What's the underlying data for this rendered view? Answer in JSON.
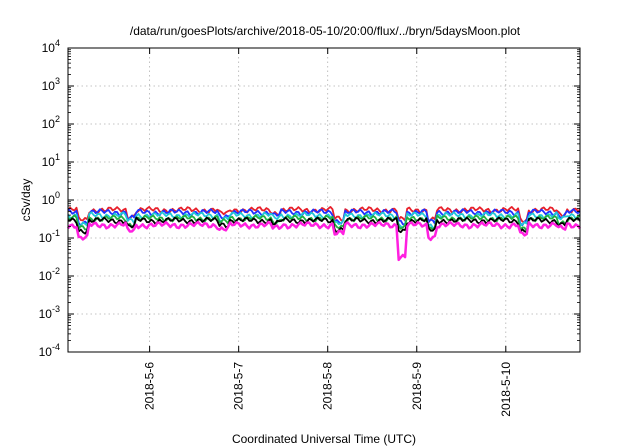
{
  "chart_data": {
    "type": "line",
    "title": "/data/run/goesPlots/archive/2018-05-10/20:00/flux/../bryn/5daysMoon.plot",
    "xlabel": "Coordinated Universal Time (UTC)",
    "ylabel": "cSv/day",
    "yscale": "log",
    "ylim": [
      0.0001,
      10000
    ],
    "y_ticks": [
      {
        "value": 0.0001,
        "base": "10",
        "exp": "-4"
      },
      {
        "value": 0.001,
        "base": "10",
        "exp": "-3"
      },
      {
        "value": 0.01,
        "base": "10",
        "exp": "-2"
      },
      {
        "value": 0.1,
        "base": "10",
        "exp": "-1"
      },
      {
        "value": 1,
        "base": "10",
        "exp": "0"
      },
      {
        "value": 10,
        "base": "10",
        "exp": "1"
      },
      {
        "value": 100,
        "base": "10",
        "exp": "2"
      },
      {
        "value": 1000,
        "base": "10",
        "exp": "3"
      },
      {
        "value": 10000,
        "base": "10",
        "exp": "4"
      }
    ],
    "xlim": [
      "2018-05-05T02:00",
      "2018-05-10T20:00"
    ],
    "x_ticks": [
      {
        "value": "2018-05-06T00:00",
        "label": "2018-5-6"
      },
      {
        "value": "2018-05-07T00:00",
        "label": "2018-5-7"
      },
      {
        "value": "2018-05-08T00:00",
        "label": "2018-5-8"
      },
      {
        "value": "2018-05-09T00:00",
        "label": "2018-5-9"
      },
      {
        "value": "2018-05-10T00:00",
        "label": "2018-5-10"
      }
    ],
    "grid": true,
    "dips": [
      {
        "x": "2018-05-05T06:00",
        "scale": 0.45
      },
      {
        "x": "2018-05-05T19:00",
        "scale": 0.7
      },
      {
        "x": "2018-05-06T20:00",
        "scale": 0.8
      },
      {
        "x": "2018-05-07T10:00",
        "scale": 0.85
      },
      {
        "x": "2018-05-08T03:00",
        "scale": 0.6
      },
      {
        "x": "2018-05-08T20:00",
        "scale": 0.15
      },
      {
        "x": "2018-05-09T04:00",
        "scale": 0.5
      },
      {
        "x": "2018-05-10T05:00",
        "scale": 0.55
      },
      {
        "x": "2018-05-10T15:00",
        "scale": 0.8
      }
    ],
    "series": [
      {
        "color": "#e8202a",
        "base": 0.55
      },
      {
        "color": "#2030ff",
        "base": 0.48
      },
      {
        "color": "#20c8d8",
        "base": 0.4
      },
      {
        "color": "#20b040",
        "base": 0.33
      },
      {
        "color": "#000000",
        "base": 0.29
      },
      {
        "color": "#ff20e0",
        "base": 0.22
      }
    ]
  }
}
